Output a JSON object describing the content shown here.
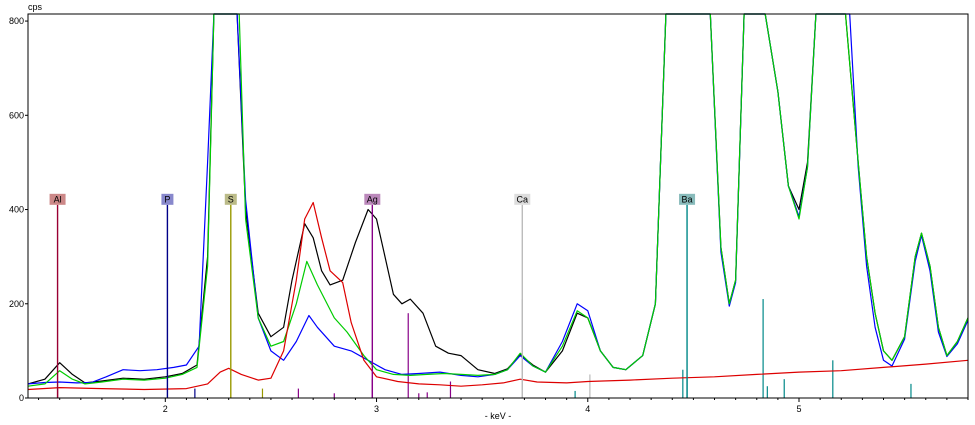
{
  "chart_data": {
    "type": "line",
    "xlabel": "- keV -",
    "ylabel": "cps",
    "xlim": [
      1.35,
      5.8
    ],
    "ylim": [
      0,
      815
    ],
    "x_ticks": [
      2,
      3,
      4,
      5
    ],
    "y_ticks": [
      0,
      200,
      400,
      600,
      800
    ],
    "series": [
      {
        "color": "#000000",
        "points": [
          [
            1.35,
            30
          ],
          [
            1.43,
            40
          ],
          [
            1.5,
            75
          ],
          [
            1.56,
            50
          ],
          [
            1.62,
            32
          ],
          [
            1.7,
            36
          ],
          [
            1.8,
            42
          ],
          [
            1.9,
            40
          ],
          [
            2.0,
            45
          ],
          [
            2.08,
            52
          ],
          [
            2.15,
            70
          ],
          [
            2.2,
            300
          ],
          [
            2.23,
            815
          ],
          [
            2.34,
            815
          ],
          [
            2.38,
            400
          ],
          [
            2.44,
            180
          ],
          [
            2.5,
            130
          ],
          [
            2.56,
            150
          ],
          [
            2.6,
            250
          ],
          [
            2.66,
            370
          ],
          [
            2.7,
            340
          ],
          [
            2.74,
            270
          ],
          [
            2.78,
            240
          ],
          [
            2.84,
            250
          ],
          [
            2.9,
            330
          ],
          [
            2.96,
            400
          ],
          [
            3.0,
            380
          ],
          [
            3.04,
            300
          ],
          [
            3.08,
            220
          ],
          [
            3.12,
            200
          ],
          [
            3.16,
            210
          ],
          [
            3.22,
            180
          ],
          [
            3.28,
            110
          ],
          [
            3.34,
            95
          ],
          [
            3.4,
            90
          ],
          [
            3.48,
            60
          ],
          [
            3.56,
            52
          ],
          [
            3.62,
            62
          ],
          [
            3.68,
            92
          ],
          [
            3.74,
            70
          ],
          [
            3.8,
            55
          ],
          [
            3.88,
            100
          ],
          [
            3.95,
            180
          ],
          [
            4.0,
            170
          ],
          [
            4.06,
            100
          ],
          [
            4.12,
            65
          ],
          [
            4.18,
            60
          ],
          [
            4.26,
            90
          ],
          [
            4.32,
            200
          ],
          [
            4.37,
            815
          ],
          [
            4.58,
            815
          ],
          [
            4.63,
            320
          ],
          [
            4.67,
            200
          ],
          [
            4.7,
            250
          ],
          [
            4.74,
            815
          ],
          [
            4.84,
            815
          ],
          [
            4.9,
            650
          ],
          [
            4.95,
            450
          ],
          [
            5.0,
            400
          ],
          [
            5.04,
            500
          ],
          [
            5.08,
            815
          ],
          [
            5.22,
            815
          ],
          [
            5.28,
            500
          ],
          [
            5.32,
            300
          ],
          [
            5.36,
            180
          ],
          [
            5.4,
            100
          ],
          [
            5.44,
            80
          ],
          [
            5.5,
            130
          ],
          [
            5.55,
            300
          ],
          [
            5.58,
            350
          ],
          [
            5.62,
            280
          ],
          [
            5.66,
            150
          ],
          [
            5.7,
            90
          ],
          [
            5.75,
            120
          ],
          [
            5.8,
            170
          ]
        ]
      },
      {
        "color": "#0000ff",
        "points": [
          [
            1.35,
            30
          ],
          [
            1.43,
            33
          ],
          [
            1.5,
            34
          ],
          [
            1.58,
            32
          ],
          [
            1.65,
            33
          ],
          [
            1.72,
            45
          ],
          [
            1.8,
            60
          ],
          [
            1.88,
            58
          ],
          [
            1.96,
            60
          ],
          [
            2.04,
            65
          ],
          [
            2.1,
            70
          ],
          [
            2.16,
            110
          ],
          [
            2.2,
            500
          ],
          [
            2.23,
            815
          ],
          [
            2.34,
            815
          ],
          [
            2.38,
            420
          ],
          [
            2.44,
            170
          ],
          [
            2.5,
            100
          ],
          [
            2.56,
            80
          ],
          [
            2.62,
            120
          ],
          [
            2.68,
            175
          ],
          [
            2.72,
            150
          ],
          [
            2.8,
            110
          ],
          [
            2.88,
            100
          ],
          [
            2.96,
            80
          ],
          [
            3.04,
            60
          ],
          [
            3.12,
            50
          ],
          [
            3.2,
            52
          ],
          [
            3.3,
            55
          ],
          [
            3.4,
            48
          ],
          [
            3.48,
            45
          ],
          [
            3.56,
            50
          ],
          [
            3.62,
            60
          ],
          [
            3.68,
            90
          ],
          [
            3.74,
            68
          ],
          [
            3.8,
            55
          ],
          [
            3.88,
            120
          ],
          [
            3.95,
            200
          ],
          [
            4.0,
            185
          ],
          [
            4.06,
            100
          ],
          [
            4.12,
            65
          ],
          [
            4.18,
            60
          ],
          [
            4.26,
            90
          ],
          [
            4.32,
            200
          ],
          [
            4.37,
            815
          ],
          [
            4.58,
            815
          ],
          [
            4.63,
            310
          ],
          [
            4.67,
            195
          ],
          [
            4.7,
            245
          ],
          [
            4.74,
            815
          ],
          [
            4.84,
            815
          ],
          [
            4.9,
            650
          ],
          [
            4.95,
            450
          ],
          [
            5.0,
            385
          ],
          [
            5.04,
            490
          ],
          [
            5.08,
            815
          ],
          [
            5.24,
            815
          ],
          [
            5.28,
            490
          ],
          [
            5.32,
            280
          ],
          [
            5.36,
            150
          ],
          [
            5.4,
            80
          ],
          [
            5.44,
            68
          ],
          [
            5.5,
            125
          ],
          [
            5.55,
            290
          ],
          [
            5.58,
            345
          ],
          [
            5.62,
            270
          ],
          [
            5.66,
            140
          ],
          [
            5.7,
            88
          ],
          [
            5.75,
            115
          ],
          [
            5.8,
            165
          ]
        ]
      },
      {
        "color": "#00cc00",
        "points": [
          [
            1.35,
            25
          ],
          [
            1.43,
            30
          ],
          [
            1.5,
            58
          ],
          [
            1.56,
            40
          ],
          [
            1.62,
            30
          ],
          [
            1.7,
            34
          ],
          [
            1.8,
            40
          ],
          [
            1.9,
            38
          ],
          [
            2.0,
            42
          ],
          [
            2.08,
            50
          ],
          [
            2.15,
            65
          ],
          [
            2.2,
            280
          ],
          [
            2.23,
            815
          ],
          [
            2.35,
            815
          ],
          [
            2.38,
            380
          ],
          [
            2.44,
            170
          ],
          [
            2.5,
            110
          ],
          [
            2.56,
            120
          ],
          [
            2.62,
            200
          ],
          [
            2.67,
            290
          ],
          [
            2.72,
            240
          ],
          [
            2.8,
            170
          ],
          [
            2.86,
            140
          ],
          [
            2.94,
            90
          ],
          [
            3.0,
            60
          ],
          [
            3.08,
            50
          ],
          [
            3.16,
            48
          ],
          [
            3.24,
            50
          ],
          [
            3.32,
            52
          ],
          [
            3.4,
            50
          ],
          [
            3.48,
            48
          ],
          [
            3.56,
            50
          ],
          [
            3.62,
            60
          ],
          [
            3.68,
            95
          ],
          [
            3.74,
            68
          ],
          [
            3.8,
            55
          ],
          [
            3.88,
            110
          ],
          [
            3.95,
            185
          ],
          [
            4.0,
            170
          ],
          [
            4.06,
            100
          ],
          [
            4.12,
            65
          ],
          [
            4.18,
            60
          ],
          [
            4.26,
            90
          ],
          [
            4.32,
            200
          ],
          [
            4.37,
            815
          ],
          [
            4.58,
            815
          ],
          [
            4.63,
            320
          ],
          [
            4.67,
            200
          ],
          [
            4.7,
            250
          ],
          [
            4.74,
            815
          ],
          [
            4.84,
            815
          ],
          [
            4.9,
            650
          ],
          [
            4.95,
            450
          ],
          [
            5.0,
            380
          ],
          [
            5.04,
            490
          ],
          [
            5.08,
            815
          ],
          [
            5.22,
            815
          ],
          [
            5.28,
            500
          ],
          [
            5.32,
            300
          ],
          [
            5.36,
            180
          ],
          [
            5.4,
            100
          ],
          [
            5.44,
            80
          ],
          [
            5.5,
            130
          ],
          [
            5.55,
            300
          ],
          [
            5.58,
            350
          ],
          [
            5.62,
            280
          ],
          [
            5.66,
            150
          ],
          [
            5.7,
            90
          ],
          [
            5.75,
            120
          ],
          [
            5.8,
            170
          ]
        ]
      },
      {
        "color": "#dd0000",
        "points": [
          [
            1.35,
            18
          ],
          [
            1.5,
            22
          ],
          [
            1.7,
            20
          ],
          [
            1.9,
            18
          ],
          [
            2.1,
            20
          ],
          [
            2.2,
            30
          ],
          [
            2.26,
            55
          ],
          [
            2.3,
            63
          ],
          [
            2.36,
            50
          ],
          [
            2.44,
            38
          ],
          [
            2.5,
            42
          ],
          [
            2.56,
            100
          ],
          [
            2.62,
            250
          ],
          [
            2.66,
            380
          ],
          [
            2.7,
            415
          ],
          [
            2.74,
            340
          ],
          [
            2.78,
            270
          ],
          [
            2.84,
            245
          ],
          [
            2.88,
            160
          ],
          [
            2.94,
            80
          ],
          [
            3.0,
            45
          ],
          [
            3.1,
            35
          ],
          [
            3.2,
            30
          ],
          [
            3.3,
            28
          ],
          [
            3.4,
            25
          ],
          [
            3.5,
            28
          ],
          [
            3.6,
            32
          ],
          [
            3.68,
            40
          ],
          [
            3.76,
            34
          ],
          [
            3.9,
            32
          ],
          [
            4.0,
            35
          ],
          [
            4.2,
            38
          ],
          [
            4.4,
            42
          ],
          [
            4.6,
            45
          ],
          [
            4.8,
            50
          ],
          [
            5.0,
            55
          ],
          [
            5.2,
            58
          ],
          [
            5.4,
            65
          ],
          [
            5.6,
            72
          ],
          [
            5.8,
            80
          ]
        ]
      }
    ],
    "elements": [
      {
        "symbol": "Al",
        "energy": 1.49,
        "height": 410,
        "color": "#990033",
        "label_bg": "#cc8888"
      },
      {
        "symbol": "P",
        "energy": 2.01,
        "height": 410,
        "color": "#000088",
        "label_bg": "#8888cc"
      },
      {
        "symbol": "S",
        "energy": 2.31,
        "height": 410,
        "color": "#999900",
        "label_bg": "#bbbb88"
      },
      {
        "symbol": "Ag",
        "energy": 2.98,
        "height": 410,
        "color": "#880088",
        "label_bg": "#bb88bb"
      },
      {
        "symbol": "Ca",
        "energy": 3.69,
        "height": 410,
        "color": "#bbbbbb",
        "label_bg": "#dddddd"
      },
      {
        "symbol": "Ba",
        "energy": 4.47,
        "height": 410,
        "color": "#008888",
        "label_bg": "#88bbbb"
      }
    ],
    "markers": [
      {
        "energy": 1.49,
        "height": 20,
        "color": "#990033"
      },
      {
        "energy": 2.14,
        "height": 20,
        "color": "#000088"
      },
      {
        "energy": 2.46,
        "height": 20,
        "color": "#999900"
      },
      {
        "energy": 2.63,
        "height": 20,
        "color": "#880088"
      },
      {
        "energy": 2.8,
        "height": 10,
        "color": "#880088"
      },
      {
        "energy": 2.98,
        "height": 40,
        "color": "#880088"
      },
      {
        "energy": 3.15,
        "height": 180,
        "color": "#880088"
      },
      {
        "energy": 3.2,
        "height": 10,
        "color": "#880088"
      },
      {
        "energy": 3.24,
        "height": 12,
        "color": "#880088"
      },
      {
        "energy": 3.35,
        "height": 35,
        "color": "#880088"
      },
      {
        "energy": 3.69,
        "height": 210,
        "color": "#bbbbbb"
      },
      {
        "energy": 4.01,
        "height": 50,
        "color": "#bbbbbb"
      },
      {
        "energy": 3.94,
        "height": 15,
        "color": "#008888"
      },
      {
        "energy": 4.45,
        "height": 60,
        "color": "#008888"
      },
      {
        "energy": 4.47,
        "height": 45,
        "color": "#008888"
      },
      {
        "energy": 4.83,
        "height": 210,
        "color": "#008888"
      },
      {
        "energy": 4.85,
        "height": 25,
        "color": "#008888"
      },
      {
        "energy": 4.93,
        "height": 40,
        "color": "#008888"
      },
      {
        "energy": 5.16,
        "height": 80,
        "color": "#008888"
      },
      {
        "energy": 5.53,
        "height": 30,
        "color": "#008888"
      }
    ]
  }
}
